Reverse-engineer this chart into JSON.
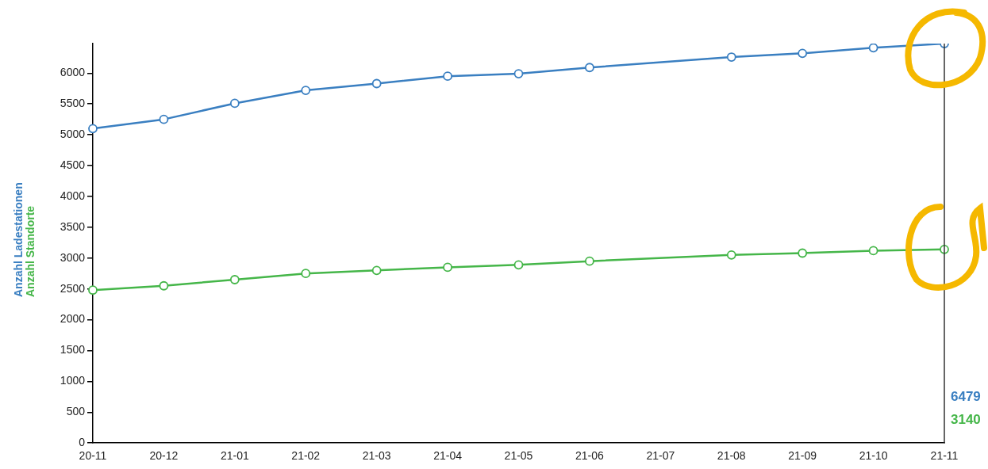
{
  "chart_data": {
    "type": "line",
    "categories": [
      "20-11",
      "20-12",
      "21-01",
      "21-02",
      "21-03",
      "21-04",
      "21-05",
      "21-06",
      "21-07",
      "21-08",
      "21-09",
      "21-10",
      "21-11"
    ],
    "series": [
      {
        "name": "Anzahl Ladestationen",
        "color": "#3a7fc1",
        "values": [
          5100,
          5250,
          5510,
          5720,
          5830,
          5950,
          5990,
          6090,
          null,
          6260,
          6320,
          6410,
          6479
        ]
      },
      {
        "name": "Anzahl Standorte",
        "color": "#45b649",
        "values": [
          2480,
          2550,
          2650,
          2750,
          2800,
          2850,
          2890,
          2950,
          null,
          3050,
          3080,
          3120,
          3140
        ]
      }
    ],
    "ylim": [
      0,
      6479
    ],
    "yticks": [
      0,
      500,
      1000,
      1500,
      2000,
      2500,
      3000,
      3500,
      4000,
      4500,
      5000,
      5500,
      6000
    ],
    "grid": false,
    "legend": "left",
    "marker": "circle",
    "line_style": "solid",
    "ref_lines": [
      {
        "axis": "x",
        "value": "21-11",
        "color": "#333333"
      }
    ],
    "annotations": [
      "6479",
      "3140"
    ]
  }
}
